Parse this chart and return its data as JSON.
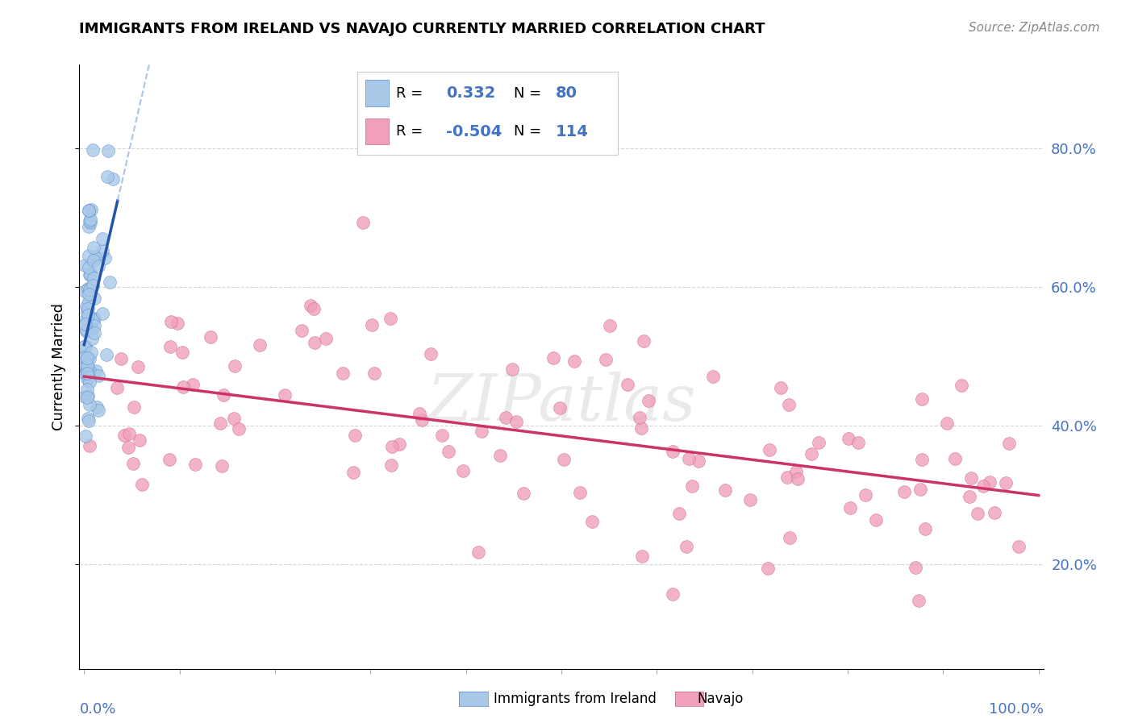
{
  "title": "IMMIGRANTS FROM IRELAND VS NAVAJO CURRENTLY MARRIED CORRELATION CHART",
  "source": "Source: ZipAtlas.com",
  "ylabel": "Currently Married",
  "ytick_values": [
    0.2,
    0.4,
    0.6,
    0.8
  ],
  "xlim": [
    -0.005,
    1.005
  ],
  "ylim": [
    0.05,
    0.92
  ],
  "legend_blue_R": "0.332",
  "legend_blue_N": "80",
  "legend_pink_R": "-0.504",
  "legend_pink_N": "114",
  "watermark": "ZIPatlas",
  "blue_color": "#a8c8e8",
  "blue_edge": "#5588cc",
  "pink_color": "#f0a0b8",
  "pink_edge": "#cc6088",
  "blue_line_color": "#2255aa",
  "blue_dash_color": "#88aadd",
  "pink_line_color": "#cc3366",
  "title_fontsize": 13,
  "source_fontsize": 11,
  "legend_fontsize": 13,
  "axis_label_color": "#4472c4",
  "grid_color": "#cccccc"
}
